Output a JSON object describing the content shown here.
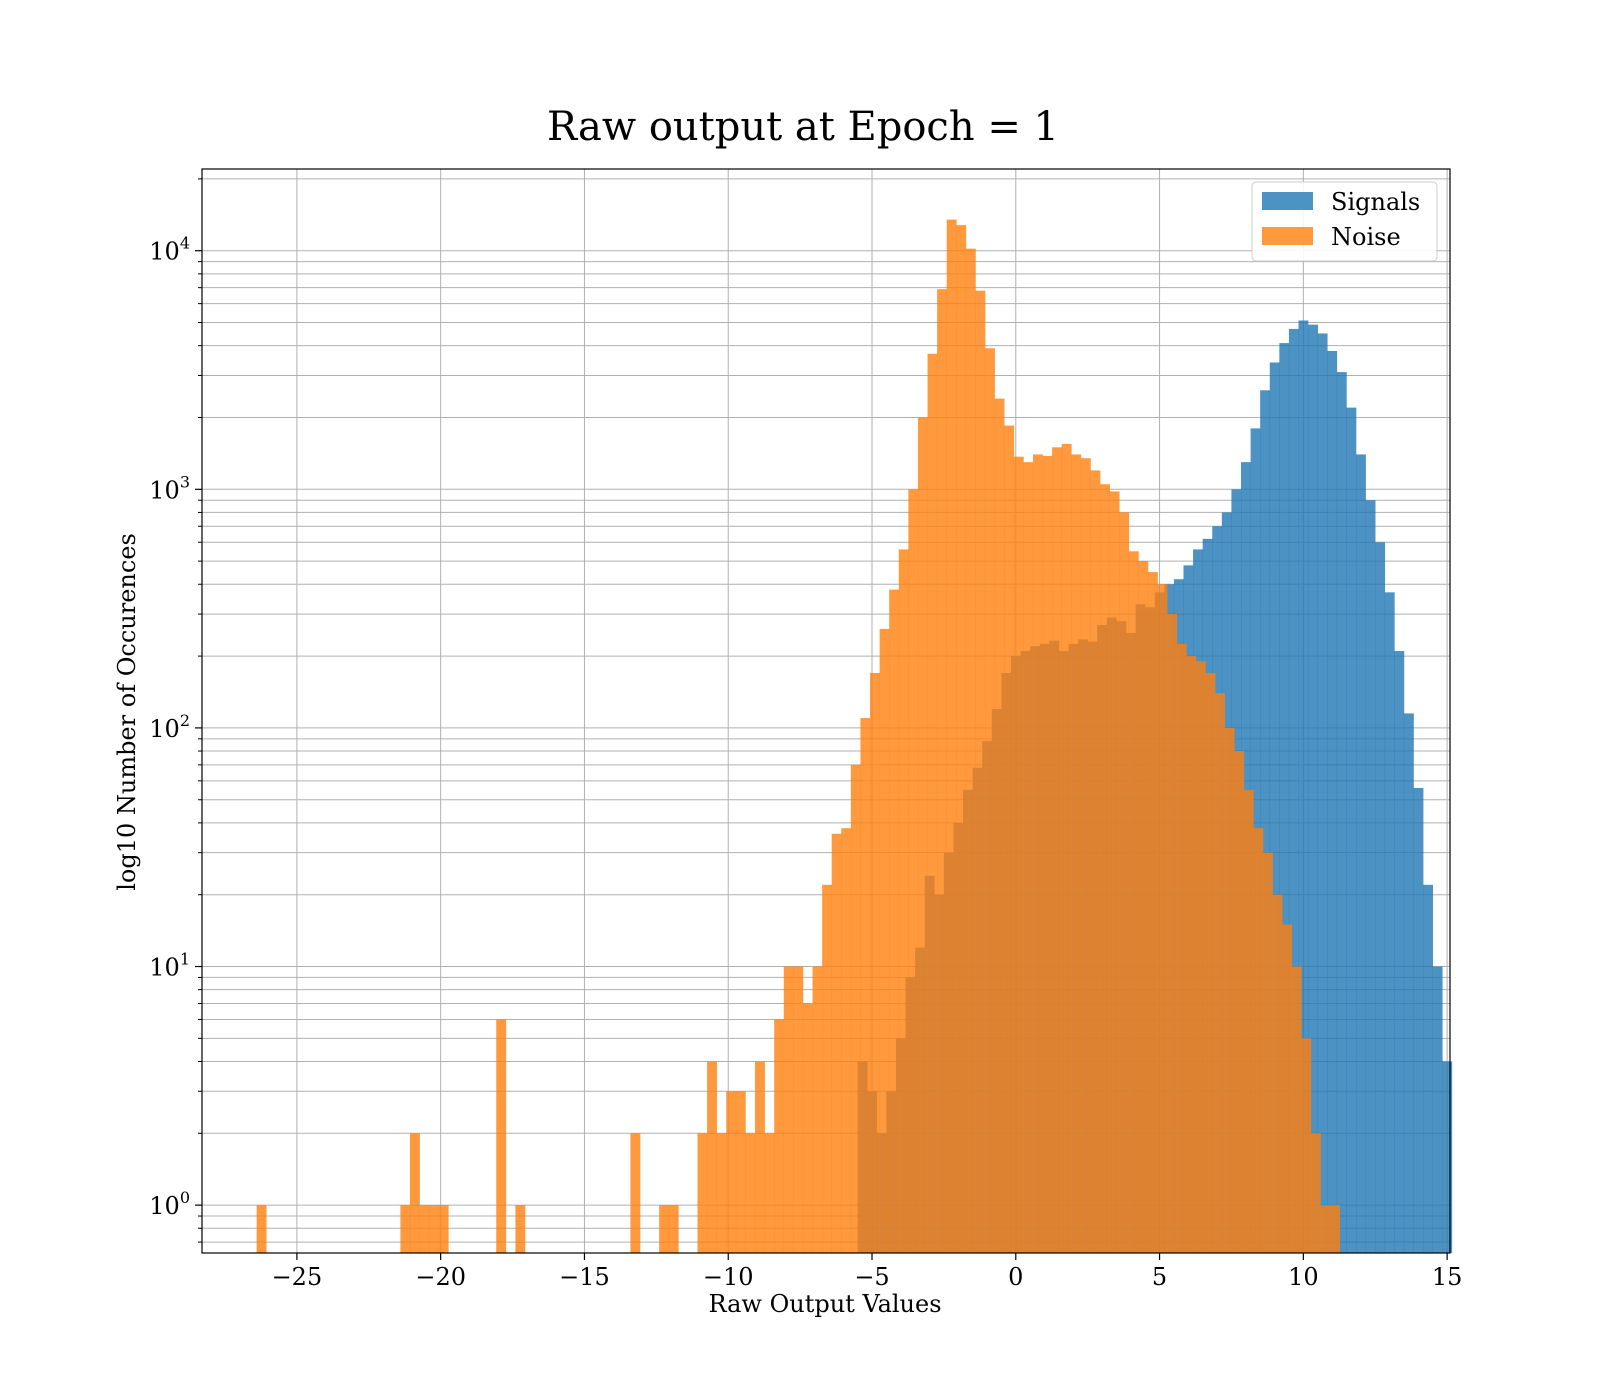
{
  "chart_data": {
    "type": "bar",
    "title": "Raw output at Epoch = 1",
    "xlabel": "Raw Output Values",
    "ylabel": "log10 Number of Occurences",
    "xlim": [
      -28.3,
      15.1
    ],
    "ylim": [
      0.63,
      22000
    ],
    "yscale": "log",
    "grid": true,
    "legend_position": "top-right",
    "x_ticks": [
      {
        "value": -25,
        "label": "−25"
      },
      {
        "value": -20,
        "label": "−20"
      },
      {
        "value": -15,
        "label": "−15"
      },
      {
        "value": -10,
        "label": "−10"
      },
      {
        "value": -5,
        "label": "−5"
      },
      {
        "value": 0,
        "label": "0"
      },
      {
        "value": 5,
        "label": "5"
      },
      {
        "value": 10,
        "label": "10"
      },
      {
        "value": 15,
        "label": "15"
      }
    ],
    "y_ticks": [
      {
        "value": 1,
        "base": "10",
        "exp": "0"
      },
      {
        "value": 10,
        "base": "10",
        "exp": "1"
      },
      {
        "value": 100,
        "base": "10",
        "exp": "2"
      },
      {
        "value": 1000,
        "base": "10",
        "exp": "3"
      },
      {
        "value": 10000,
        "base": "10",
        "exp": "4"
      }
    ],
    "series": [
      {
        "name": "Signals",
        "color": "#1f77b4",
        "opacity": 0.8,
        "bin_start": -5.5,
        "bin_width": 0.3333,
        "counts": [
          4,
          3,
          2,
          3,
          5,
          9,
          12,
          24,
          20,
          30,
          40,
          55,
          68,
          88,
          120,
          170,
          200,
          210,
          220,
          225,
          232,
          210,
          225,
          235,
          230,
          270,
          290,
          280,
          250,
          330,
          320,
          370,
          400,
          420,
          480,
          560,
          620,
          700,
          800,
          1000,
          1300,
          1800,
          2600,
          3400,
          4100,
          4700,
          5100,
          4900,
          4500,
          3800,
          3100,
          2200,
          1400,
          900,
          600,
          370,
          210,
          115,
          56,
          22,
          10,
          4
        ]
      },
      {
        "name": "Noise",
        "color": "#ff7f0e",
        "opacity": 0.8,
        "bin_start": -26.4,
        "bin_width": 0.3333,
        "counts": [
          1,
          0,
          0,
          0,
          0,
          0,
          0,
          0,
          0,
          0,
          0,
          0,
          0,
          0,
          0,
          1,
          2,
          1,
          1,
          1,
          0,
          0,
          0,
          0,
          0,
          6,
          0,
          1,
          0,
          0,
          0,
          0,
          0,
          0,
          0,
          0,
          0,
          0,
          0,
          2,
          0,
          0,
          1,
          1,
          0,
          0,
          2,
          4,
          2,
          3,
          3,
          2,
          4,
          2,
          6,
          10,
          10,
          7,
          10,
          22,
          36,
          38,
          70,
          110,
          170,
          260,
          380,
          560,
          1000,
          2000,
          3700,
          6900,
          13500,
          12800,
          10200,
          6800,
          3900,
          2400,
          1850,
          1370,
          1300,
          1400,
          1380,
          1500,
          1550,
          1400,
          1350,
          1200,
          1050,
          980,
          800,
          550,
          500,
          450,
          400,
          300,
          225,
          200,
          190,
          170,
          140,
          100,
          80,
          55,
          38,
          30,
          20,
          15,
          10,
          5,
          2,
          1,
          1
        ]
      }
    ]
  }
}
